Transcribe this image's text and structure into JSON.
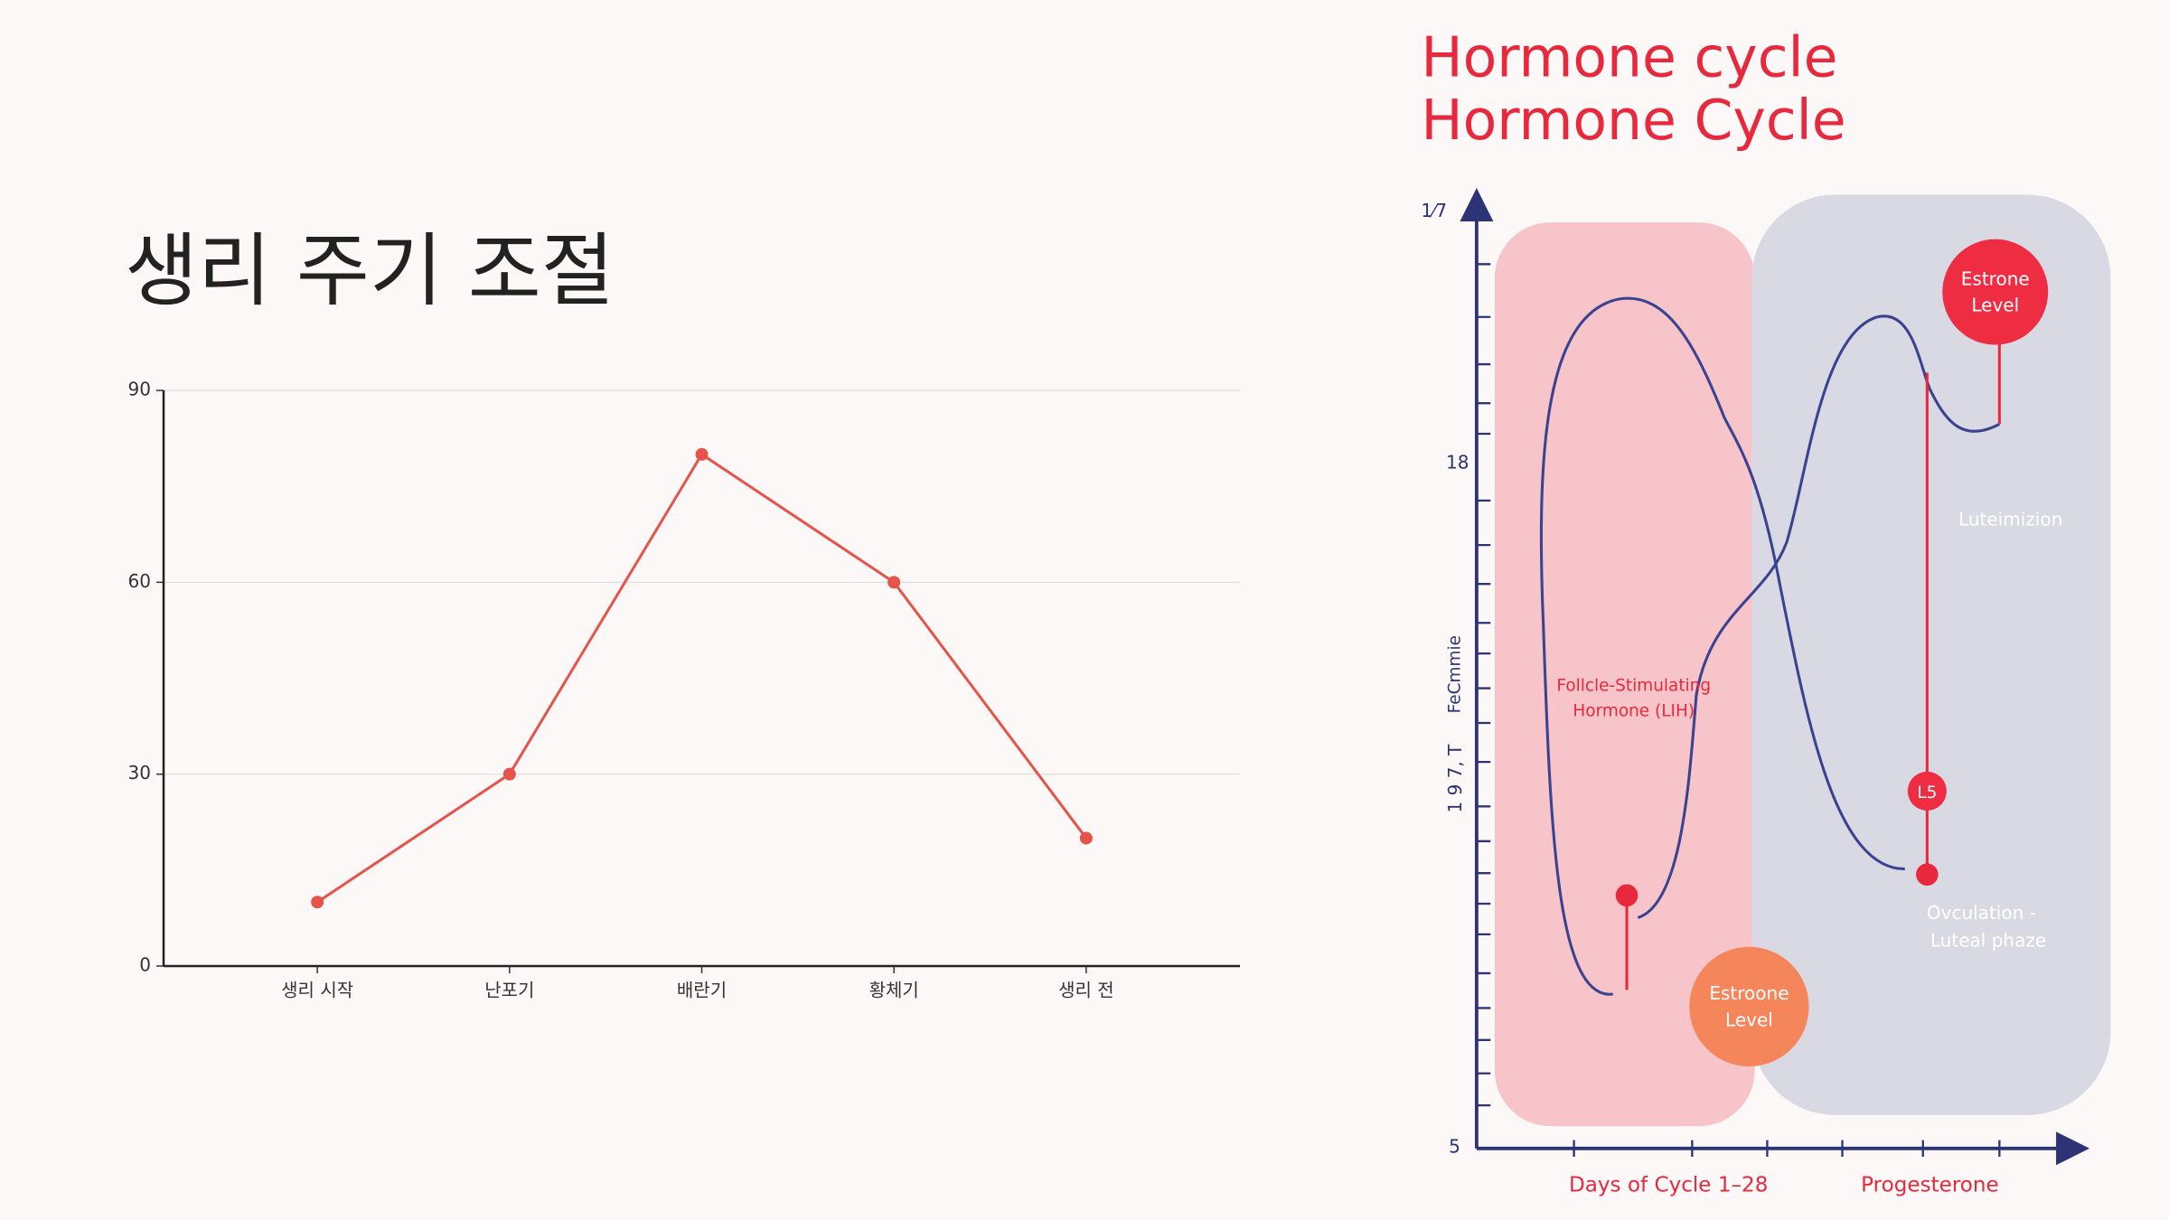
{
  "chart_data": {
    "type": "line",
    "title": "생리 주기 조절",
    "categories": [
      "생리 시작",
      "난포기",
      "배란기",
      "황체기",
      "생리 전"
    ],
    "values": [
      10,
      30,
      80,
      60,
      20
    ],
    "color": "#e5534b",
    "ylim": [
      0,
      90
    ],
    "yticks": [
      0,
      30,
      60,
      90
    ],
    "grid": true
  },
  "illustration": {
    "title_lines": [
      "Hormone cycle",
      "Hormone Cycle"
    ],
    "y_labels": [
      "1⁄7",
      "18",
      "5"
    ],
    "y_axis_texts": [
      "FeCmmie",
      "1 9 7, T"
    ],
    "fsh_label": [
      "Follcle-Stimulating",
      "Hormone (LIH)"
    ],
    "estrone_top": [
      "Estrone",
      "Level"
    ],
    "luteinizing": "Luteimizion",
    "marker": "L5",
    "phase_label": [
      "Ovculation -",
      "Luteal phaze"
    ],
    "estrone_bottom": [
      "Estroone",
      "Level"
    ],
    "x_labels": [
      "Days of Cycle  1–28",
      "Progesterone"
    ]
  }
}
